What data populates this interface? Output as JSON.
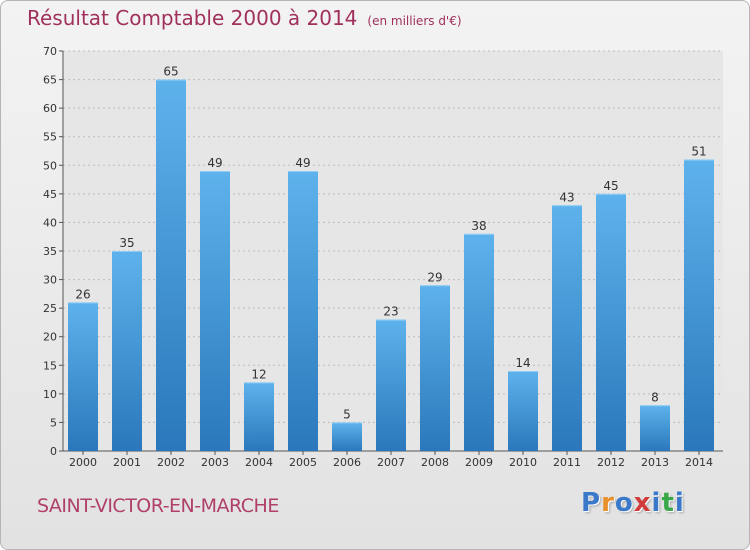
{
  "chart_data": {
    "type": "bar",
    "title": "Résultat Comptable 2000 à 2014",
    "subtitle": "(en milliers d'€)",
    "categories": [
      "2000",
      "2001",
      "2002",
      "2003",
      "2004",
      "2005",
      "2006",
      "2007",
      "2008",
      "2009",
      "2010",
      "2011",
      "2012",
      "2013",
      "2014"
    ],
    "values": [
      26,
      35,
      65,
      49,
      12,
      49,
      5,
      23,
      29,
      38,
      14,
      43,
      45,
      8,
      51
    ],
    "ylim": [
      0,
      70
    ],
    "yticks": [
      0,
      5,
      10,
      15,
      20,
      25,
      30,
      35,
      40,
      45,
      50,
      55,
      60,
      65,
      70
    ],
    "grid": true,
    "xlabel": "",
    "ylabel": "",
    "bar_color": "#4a9fdf"
  },
  "footer": {
    "town": "SAINT-VICTOR-EN-MARCHE"
  },
  "logo": {
    "letters": [
      "P",
      "r",
      "o",
      "x",
      "i",
      "t",
      "i"
    ],
    "colors": [
      "#3a78c9",
      "#e8902a",
      "#3a78c9",
      "#d13b3b",
      "#3a78c9",
      "#3aa84a",
      "#3a78c9"
    ]
  }
}
